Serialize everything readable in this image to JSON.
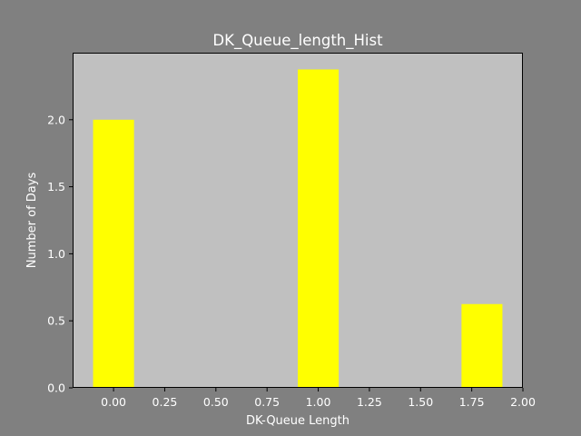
{
  "chart_data": {
    "type": "bar",
    "title": "DK_Queue_length_Hist",
    "xlabel": "DK-Queue Length",
    "ylabel": "Number of Days",
    "xlim": [
      -0.2,
      2.0
    ],
    "ylim": [
      0,
      2.5
    ],
    "x_ticks": [
      "0.00",
      "0.25",
      "0.50",
      "0.75",
      "1.00",
      "1.25",
      "1.50",
      "1.75",
      "2.00"
    ],
    "x_tick_values": [
      0,
      0.25,
      0.5,
      0.75,
      1.0,
      1.25,
      1.5,
      1.75,
      2.0
    ],
    "y_ticks": [
      "0.0",
      "0.5",
      "1.0",
      "1.5",
      "2.0"
    ],
    "y_tick_values": [
      0,
      0.5,
      1.0,
      1.5,
      2.0
    ],
    "bar_width": 0.2,
    "bars": [
      {
        "x": 0.0,
        "value": 2.0
      },
      {
        "x": 1.0,
        "value": 2.375
      },
      {
        "x": 1.8,
        "value": 0.625
      }
    ],
    "grid": false,
    "colors": {
      "figure_bg": "#808080",
      "axes_bg": "#c0c0c0",
      "bar": "#ffff00",
      "text": "#ffffff"
    }
  }
}
